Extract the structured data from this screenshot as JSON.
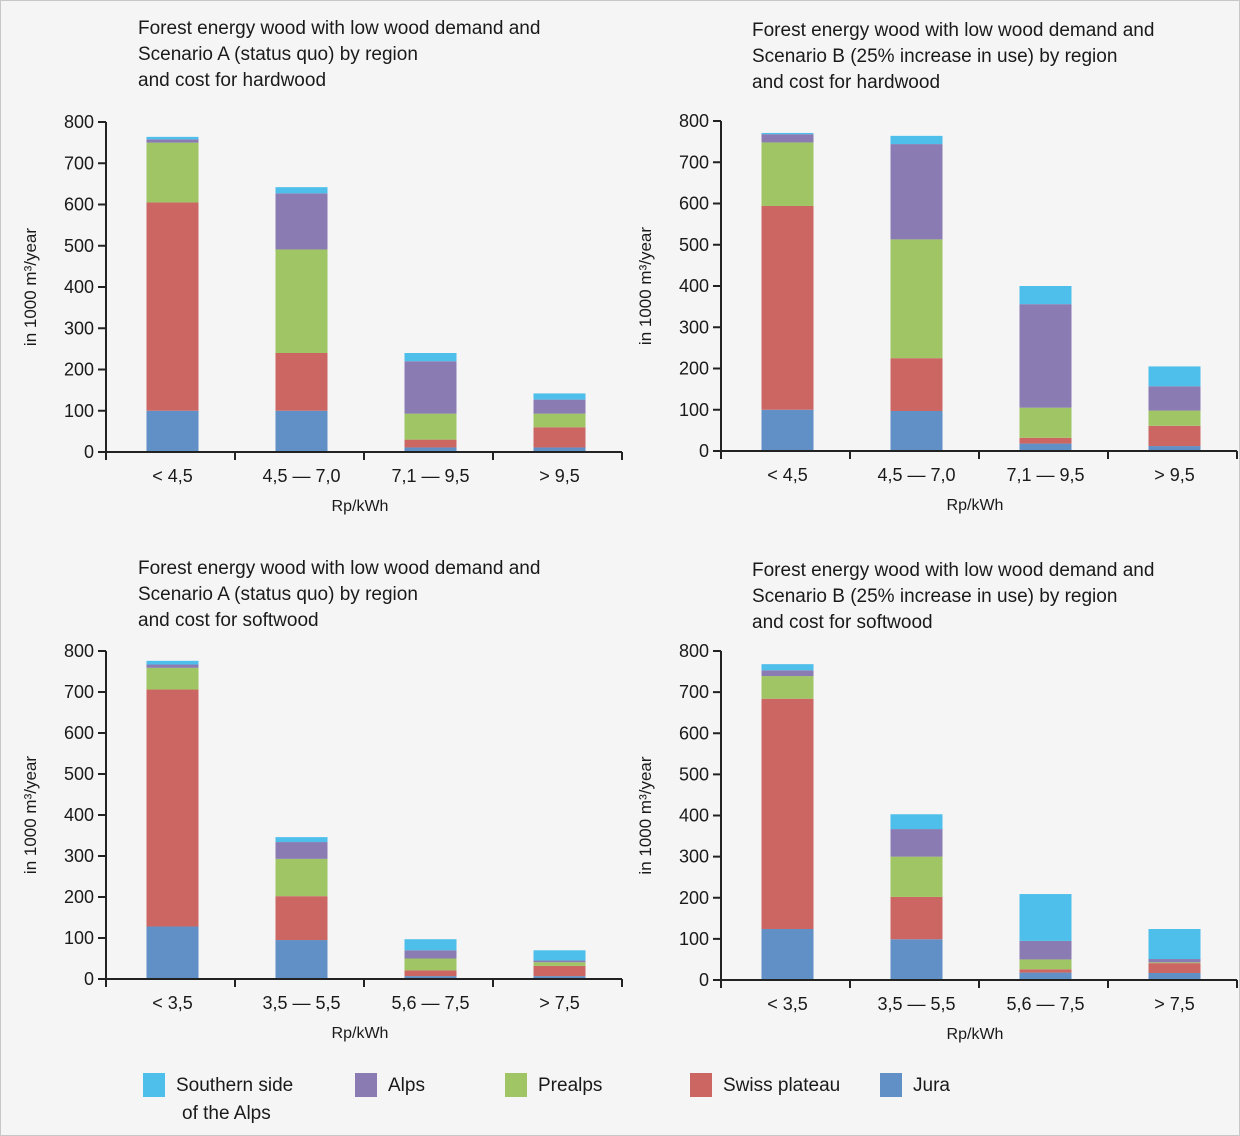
{
  "legend": [
    {
      "name": "Southern side",
      "name2": "of the Alps",
      "color": "#4dbfea"
    },
    {
      "name": "Alps",
      "color": "#8a7bb2"
    },
    {
      "name": "Prealps",
      "color": "#a0c565"
    },
    {
      "name": "Swiss plateau",
      "color": "#cc6663"
    },
    {
      "name": "Jura",
      "color": "#6190c7"
    }
  ],
  "chart_data": [
    {
      "type": "bar",
      "stacked": true,
      "title": [
        "Forest energy wood with low wood demand and",
        "Scenario A (status quo) by region",
        "and cost for hardwood"
      ],
      "xlabel": "Rp/kWh",
      "ylabel": "in 1000 m³/year",
      "ylim": [
        0,
        800
      ],
      "yticks": [
        "0",
        "100",
        "200",
        "300",
        "400",
        "500",
        "600",
        "700",
        "800"
      ],
      "categories": [
        "< 4,5",
        "4,5 — 7,0",
        "7,1 — 9,5",
        "> 9,5"
      ],
      "series": [
        {
          "name": "Jura",
          "values": [
            100,
            100,
            11,
            11
          ]
        },
        {
          "name": "Swiss plateau",
          "values": [
            505,
            140,
            19,
            49
          ]
        },
        {
          "name": "Prealps",
          "values": [
            145,
            251,
            63,
            33
          ]
        },
        {
          "name": "Alps",
          "values": [
            8,
            136,
            127,
            34
          ]
        },
        {
          "name": "Southern side of the Alps",
          "values": [
            6,
            15,
            20,
            15
          ]
        }
      ]
    },
    {
      "type": "bar",
      "stacked": true,
      "title": [
        "Forest energy wood with low wood demand and",
        "Scenario B (25% increase in use) by region",
        "and cost for hardwood"
      ],
      "xlabel": "Rp/kWh",
      "ylabel": "in 1000 m³/year",
      "ylim": [
        0,
        800
      ],
      "yticks": [
        "0",
        "100",
        "200",
        "300",
        "400",
        "500",
        "600",
        "700",
        "800"
      ],
      "categories": [
        "< 4,5",
        "4,5 — 7,0",
        "7,1 — 9,5",
        "> 9,5"
      ],
      "series": [
        {
          "name": "Jura",
          "values": [
            100,
            97,
            18,
            12
          ]
        },
        {
          "name": "Swiss plateau",
          "values": [
            494,
            128,
            14,
            49
          ]
        },
        {
          "name": "Prealps",
          "values": [
            154,
            288,
            73,
            37
          ]
        },
        {
          "name": "Alps",
          "values": [
            20,
            231,
            251,
            59
          ]
        },
        {
          "name": "Southern side of the Alps",
          "values": [
            3,
            20,
            44,
            48
          ]
        }
      ]
    },
    {
      "type": "bar",
      "stacked": true,
      "title": [
        "Forest energy wood with low wood demand and",
        "Scenario A (status quo) by region",
        "and cost for softwood"
      ],
      "xlabel": "Rp/kWh",
      "ylabel": "in 1000 m³/year",
      "ylim": [
        0,
        800
      ],
      "yticks": [
        "0",
        "100",
        "200",
        "300",
        "400",
        "500",
        "600",
        "700",
        "800"
      ],
      "categories": [
        "< 3,5",
        "3,5 — 5,5",
        "5,6 — 7,5",
        "> 7,5"
      ],
      "series": [
        {
          "name": "Jura",
          "values": [
            128,
            95,
            7,
            7
          ]
        },
        {
          "name": "Swiss plateau",
          "values": [
            578,
            107,
            14,
            25
          ]
        },
        {
          "name": "Prealps",
          "values": [
            53,
            91,
            29,
            9
          ]
        },
        {
          "name": "Alps",
          "values": [
            8,
            41,
            20,
            4
          ]
        },
        {
          "name": "Southern side of the Alps",
          "values": [
            9,
            12,
            27,
            25
          ]
        }
      ]
    },
    {
      "type": "bar",
      "stacked": true,
      "title": [
        "Forest energy wood with low wood demand and",
        "Scenario B (25% increase in use) by region",
        "and cost for softwood"
      ],
      "xlabel": "Rp/kWh",
      "ylabel": "in 1000 m³/year",
      "ylim": [
        0,
        800
      ],
      "yticks": [
        "0",
        "100",
        "200",
        "300",
        "400",
        "500",
        "600",
        "700",
        "800"
      ],
      "categories": [
        "< 3,5",
        "3,5 — 5,5",
        "5,6 — 7,5",
        "> 7,5"
      ],
      "series": [
        {
          "name": "Jura",
          "values": [
            124,
            99,
            18,
            17
          ]
        },
        {
          "name": "Swiss plateau",
          "values": [
            560,
            103,
            8,
            24
          ]
        },
        {
          "name": "Prealps",
          "values": [
            55,
            98,
            24,
            2
          ]
        },
        {
          "name": "Alps",
          "values": [
            14,
            67,
            45,
            8
          ]
        },
        {
          "name": "Southern side of the Alps",
          "values": [
            15,
            36,
            114,
            73
          ]
        }
      ]
    }
  ]
}
